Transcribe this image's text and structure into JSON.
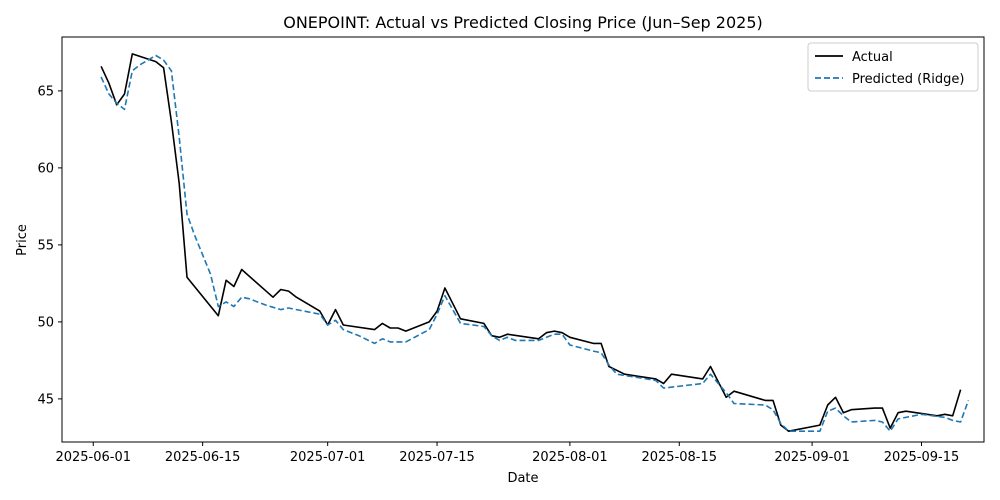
{
  "chart_data": {
    "type": "line",
    "title": "ONEPOINT: Actual vs Predicted Closing Price (Jun–Sep 2025)",
    "xlabel": "Date",
    "ylabel": "Price",
    "xlim": [
      "2025-05-28",
      "2025-09-23"
    ],
    "ylim": [
      42.2,
      68.5
    ],
    "x_ticks": [
      "2025-06-01",
      "2025-06-15",
      "2025-07-01",
      "2025-07-15",
      "2025-08-01",
      "2025-08-15",
      "2025-09-01",
      "2025-09-15"
    ],
    "y_ticks": [
      45,
      50,
      55,
      60,
      65
    ],
    "grid": false,
    "legend_position": "top-right",
    "series": [
      {
        "name": "Actual",
        "color": "#000000",
        "style": "solid",
        "points": [
          [
            "2025-06-02",
            66.6
          ],
          [
            "2025-06-03",
            65.5
          ],
          [
            "2025-06-04",
            64.1
          ],
          [
            "2025-06-05",
            64.8
          ],
          [
            "2025-06-06",
            67.4
          ],
          [
            "2025-06-09",
            66.9
          ],
          [
            "2025-06-10",
            66.5
          ],
          [
            "2025-06-11",
            63.0
          ],
          [
            "2025-06-12",
            59.0
          ],
          [
            "2025-06-13",
            52.9
          ],
          [
            "2025-06-17",
            50.4
          ],
          [
            "2025-06-18",
            52.7
          ],
          [
            "2025-06-19",
            52.3
          ],
          [
            "2025-06-20",
            53.4
          ],
          [
            "2025-06-24",
            51.6
          ],
          [
            "2025-06-25",
            52.1
          ],
          [
            "2025-06-26",
            52.0
          ],
          [
            "2025-06-27",
            51.6
          ],
          [
            "2025-06-30",
            50.7
          ],
          [
            "2025-07-01",
            49.8
          ],
          [
            "2025-07-02",
            50.8
          ],
          [
            "2025-07-03",
            49.8
          ],
          [
            "2025-07-07",
            49.5
          ],
          [
            "2025-07-08",
            49.9
          ],
          [
            "2025-07-09",
            49.6
          ],
          [
            "2025-07-10",
            49.6
          ],
          [
            "2025-07-11",
            49.4
          ],
          [
            "2025-07-14",
            50.0
          ],
          [
            "2025-07-15",
            50.7
          ],
          [
            "2025-07-16",
            52.2
          ],
          [
            "2025-07-18",
            50.2
          ],
          [
            "2025-07-21",
            49.9
          ],
          [
            "2025-07-22",
            49.1
          ],
          [
            "2025-07-23",
            49.0
          ],
          [
            "2025-07-24",
            49.2
          ],
          [
            "2025-07-28",
            48.9
          ],
          [
            "2025-07-29",
            49.3
          ],
          [
            "2025-07-30",
            49.4
          ],
          [
            "2025-07-31",
            49.3
          ],
          [
            "2025-08-01",
            49.0
          ],
          [
            "2025-08-04",
            48.6
          ],
          [
            "2025-08-05",
            48.6
          ],
          [
            "2025-08-06",
            47.1
          ],
          [
            "2025-08-08",
            46.6
          ],
          [
            "2025-08-12",
            46.3
          ],
          [
            "2025-08-13",
            46.0
          ],
          [
            "2025-08-14",
            46.6
          ],
          [
            "2025-08-18",
            46.3
          ],
          [
            "2025-08-19",
            47.1
          ],
          [
            "2025-08-20",
            46.1
          ],
          [
            "2025-08-21",
            45.1
          ],
          [
            "2025-08-22",
            45.5
          ],
          [
            "2025-08-26",
            44.9
          ],
          [
            "2025-08-27",
            44.9
          ],
          [
            "2025-08-28",
            43.3
          ],
          [
            "2025-08-29",
            42.9
          ],
          [
            "2025-09-02",
            43.3
          ],
          [
            "2025-09-03",
            44.6
          ],
          [
            "2025-09-04",
            45.1
          ],
          [
            "2025-09-05",
            44.1
          ],
          [
            "2025-09-06",
            44.3
          ],
          [
            "2025-09-09",
            44.4
          ],
          [
            "2025-09-10",
            44.4
          ],
          [
            "2025-09-11",
            43.1
          ],
          [
            "2025-09-12",
            44.1
          ],
          [
            "2025-09-13",
            44.2
          ],
          [
            "2025-09-17",
            43.9
          ],
          [
            "2025-09-18",
            44.0
          ],
          [
            "2025-09-19",
            43.9
          ],
          [
            "2025-09-20",
            45.6
          ]
        ]
      },
      {
        "name": "Predicted (Ridge)",
        "color": "#1f77b4",
        "style": "dashed",
        "points": [
          [
            "2025-06-02",
            65.9
          ],
          [
            "2025-06-03",
            64.8
          ],
          [
            "2025-06-04",
            64.2
          ],
          [
            "2025-06-05",
            63.8
          ],
          [
            "2025-06-06",
            66.3
          ],
          [
            "2025-06-07",
            66.7
          ],
          [
            "2025-06-09",
            67.3
          ],
          [
            "2025-06-10",
            67.0
          ],
          [
            "2025-06-11",
            66.3
          ],
          [
            "2025-06-12",
            62.0
          ],
          [
            "2025-06-13",
            57.0
          ],
          [
            "2025-06-14",
            55.6
          ],
          [
            "2025-06-16",
            53.1
          ],
          [
            "2025-06-17",
            51.0
          ],
          [
            "2025-06-18",
            51.3
          ],
          [
            "2025-06-19",
            51.0
          ],
          [
            "2025-06-20",
            51.6
          ],
          [
            "2025-06-21",
            51.5
          ],
          [
            "2025-06-23",
            51.1
          ],
          [
            "2025-06-25",
            50.8
          ],
          [
            "2025-06-26",
            50.9
          ],
          [
            "2025-06-27",
            50.8
          ],
          [
            "2025-06-30",
            50.5
          ],
          [
            "2025-07-01",
            49.8
          ],
          [
            "2025-07-02",
            50.1
          ],
          [
            "2025-07-03",
            49.5
          ],
          [
            "2025-07-05",
            49.1
          ],
          [
            "2025-07-07",
            48.6
          ],
          [
            "2025-07-08",
            48.9
          ],
          [
            "2025-07-09",
            48.7
          ],
          [
            "2025-07-11",
            48.7
          ],
          [
            "2025-07-14",
            49.5
          ],
          [
            "2025-07-15",
            50.5
          ],
          [
            "2025-07-16",
            51.7
          ],
          [
            "2025-07-18",
            49.9
          ],
          [
            "2025-07-21",
            49.7
          ],
          [
            "2025-07-22",
            49.1
          ],
          [
            "2025-07-23",
            48.8
          ],
          [
            "2025-07-24",
            49.0
          ],
          [
            "2025-07-25",
            48.8
          ],
          [
            "2025-07-28",
            48.8
          ],
          [
            "2025-07-30",
            49.2
          ],
          [
            "2025-07-31",
            49.2
          ],
          [
            "2025-08-01",
            48.5
          ],
          [
            "2025-08-04",
            48.1
          ],
          [
            "2025-08-05",
            48.0
          ],
          [
            "2025-08-06",
            47.2
          ],
          [
            "2025-08-07",
            46.6
          ],
          [
            "2025-08-12",
            46.2
          ],
          [
            "2025-08-13",
            45.7
          ],
          [
            "2025-08-18",
            46.0
          ],
          [
            "2025-08-19",
            46.6
          ],
          [
            "2025-08-20",
            46.0
          ],
          [
            "2025-08-21",
            45.4
          ],
          [
            "2025-08-22",
            44.7
          ],
          [
            "2025-08-26",
            44.6
          ],
          [
            "2025-08-27",
            44.3
          ],
          [
            "2025-08-28",
            43.4
          ],
          [
            "2025-08-29",
            42.9
          ],
          [
            "2025-09-01",
            42.9
          ],
          [
            "2025-09-02",
            42.9
          ],
          [
            "2025-09-03",
            44.2
          ],
          [
            "2025-09-04",
            44.4
          ],
          [
            "2025-09-05",
            43.9
          ],
          [
            "2025-09-06",
            43.5
          ],
          [
            "2025-09-09",
            43.6
          ],
          [
            "2025-09-10",
            43.5
          ],
          [
            "2025-09-11",
            42.9
          ],
          [
            "2025-09-12",
            43.7
          ],
          [
            "2025-09-15",
            44.0
          ],
          [
            "2025-09-18",
            43.8
          ],
          [
            "2025-09-19",
            43.6
          ],
          [
            "2025-09-20",
            43.5
          ],
          [
            "2025-09-21",
            44.9
          ]
        ]
      }
    ]
  }
}
